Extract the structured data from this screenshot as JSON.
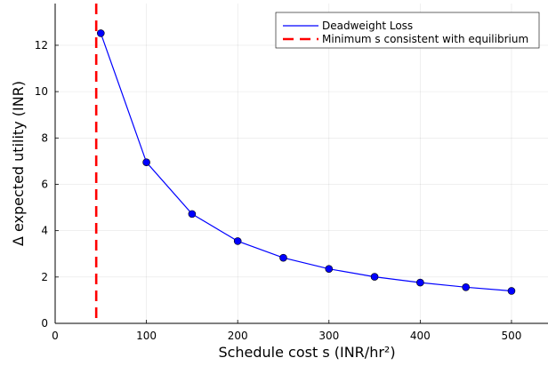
{
  "chart_data": {
    "type": "line",
    "xlabel": "Schedule cost s (INR/hr²)",
    "ylabel": "Δ expected utility (INR)",
    "xlim": [
      0,
      540
    ],
    "ylim": [
      0,
      13.8
    ],
    "xticks": [
      0,
      100,
      200,
      300,
      400,
      500
    ],
    "yticks": [
      0,
      2,
      4,
      6,
      8,
      10,
      12
    ],
    "grid": true,
    "legend_position": "top-right",
    "series": [
      {
        "name": "Deadweight Loss",
        "color": "#0000ff",
        "markers": true,
        "x": [
          50,
          100,
          150,
          200,
          250,
          300,
          350,
          400,
          450,
          500
        ],
        "y": [
          12.52,
          6.95,
          4.72,
          3.55,
          2.83,
          2.35,
          2.01,
          1.76,
          1.56,
          1.4
        ]
      }
    ],
    "vlines": [
      {
        "name": "Minimum s consistent with equilibrium",
        "x": 45,
        "color": "#ff0000",
        "style": "dashed"
      }
    ]
  }
}
